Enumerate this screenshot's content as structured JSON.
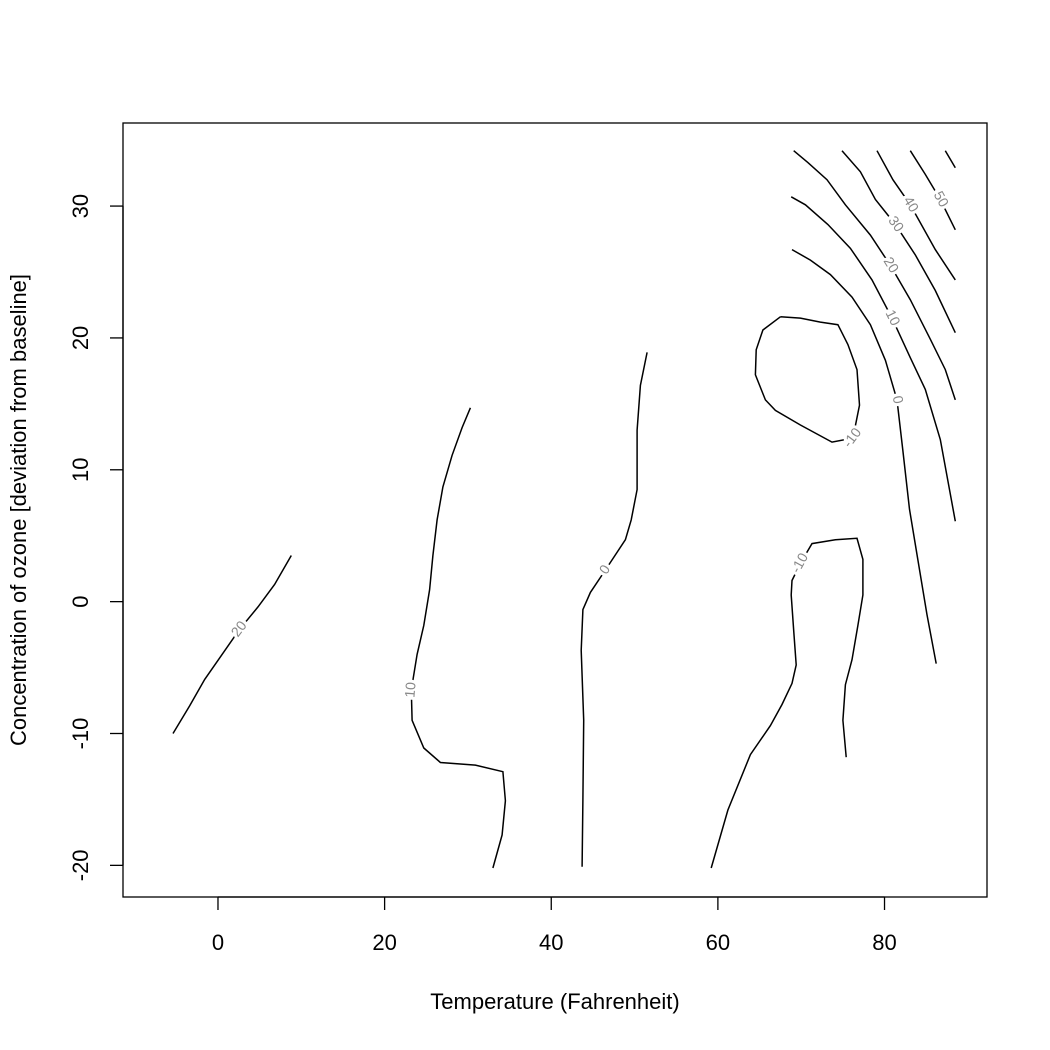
{
  "chart_data": {
    "type": "contour",
    "xlabel": "Temperature (Fahrenheit)",
    "ylabel": "Concentration of ozone [deviation from baseline]",
    "xlim": [
      -11.4,
      92.3
    ],
    "ylim": [
      -22.4,
      36.3
    ],
    "xticks": [
      0,
      20,
      40,
      60,
      80
    ],
    "yticks": [
      -20,
      -10,
      0,
      10,
      20,
      30
    ],
    "color": "#000000",
    "contours": [
      {
        "level": 20,
        "x": [
          -5.4,
          -3.4,
          -1.6,
          0.5,
          2.6,
          4.8,
          6.8,
          8.8
        ],
        "y": [
          -10.0,
          -7.9,
          -5.9,
          -4.0,
          -2.1,
          -0.4,
          1.3,
          3.5
        ]
      },
      {
        "level": 10,
        "x": [
          30.3,
          29.3,
          28.1,
          27.0,
          26.3,
          25.8,
          25.4,
          24.7,
          23.9,
          23.2,
          23.3,
          24.7,
          26.7,
          30.9,
          34.2,
          34.5,
          34.1,
          33.0
        ],
        "y": [
          14.7,
          13.2,
          11.1,
          8.7,
          6.2,
          3.5,
          0.9,
          -1.8,
          -4.0,
          -6.7,
          -9.0,
          -11.1,
          -12.2,
          -12.4,
          -12.9,
          -15.1,
          -17.7,
          -20.2
        ]
      },
      {
        "level": 0,
        "x": [
          51.5,
          50.7,
          50.3,
          50.3,
          49.6,
          48.9,
          46.5,
          44.7,
          43.8,
          43.6,
          43.9,
          43.8,
          43.7
        ],
        "y": [
          18.9,
          16.4,
          13.0,
          8.5,
          6.2,
          4.7,
          2.4,
          0.7,
          -0.6,
          -3.7,
          -9.0,
          -15.0,
          -20.1
        ]
      },
      {
        "level": -10,
        "x": [
          59.2,
          61.2,
          63.9,
          66.3,
          67.7,
          68.9,
          69.4,
          69.1,
          68.8,
          68.9,
          69.9,
          71.3,
          74.1,
          76.7,
          77.4,
          77.4,
          76.8,
          76.1,
          75.3,
          75.0,
          75.4
        ],
        "y": [
          -20.2,
          -15.8,
          -11.6,
          -9.4,
          -7.8,
          -6.2,
          -4.8,
          -2.2,
          0.5,
          1.6,
          2.9,
          4.4,
          4.7,
          4.8,
          3.2,
          0.5,
          -1.8,
          -4.4,
          -6.3,
          -9.0,
          -11.8
        ]
      },
      {
        "level": -10,
        "x": [
          67.5,
          65.4,
          64.6,
          64.5,
          65.7,
          66.9,
          69.9,
          73.7,
          76.2,
          77.0,
          76.7,
          75.6,
          74.4,
          72.3,
          69.9,
          67.5
        ],
        "y": [
          21.6,
          20.6,
          19.1,
          17.2,
          15.3,
          14.5,
          13.4,
          12.1,
          12.4,
          14.9,
          17.6,
          19.5,
          21.0,
          21.2,
          21.5,
          21.6
        ]
      },
      {
        "level": 0,
        "x": [
          68.9,
          71.1,
          73.5,
          76.1,
          78.3,
          80.1,
          81.5,
          82.2,
          83.0,
          84.0,
          85.1,
          86.2
        ],
        "y": [
          26.7,
          25.9,
          24.8,
          23.1,
          21.0,
          18.3,
          15.3,
          11.5,
          7.0,
          3.2,
          -1.0,
          -4.7
        ]
      },
      {
        "level": 10,
        "x": [
          68.8,
          70.5,
          73.2,
          75.9,
          78.5,
          80.9,
          83.1,
          84.9,
          86.7,
          88.5
        ],
        "y": [
          30.7,
          30.1,
          28.6,
          26.8,
          24.4,
          21.5,
          18.5,
          16.1,
          12.3,
          6.1
        ]
      },
      {
        "level": 20,
        "x": [
          69.1,
          70.8,
          73.1,
          75.3,
          78.3,
          80.7,
          83.1,
          85.5,
          87.3,
          88.5
        ],
        "y": [
          34.2,
          33.3,
          32.0,
          30.1,
          27.8,
          25.5,
          22.9,
          19.9,
          17.6,
          15.3
        ]
      },
      {
        "level": 30,
        "x": [
          74.9,
          77.1,
          78.9,
          81.3,
          83.7,
          86.1,
          88.5
        ],
        "y": [
          34.2,
          32.6,
          30.5,
          28.6,
          26.3,
          23.6,
          20.4
        ]
      },
      {
        "level": 40,
        "x": [
          79.1,
          81.0,
          83.1,
          86.1,
          88.5
        ],
        "y": [
          34.2,
          32.0,
          30.1,
          26.7,
          24.4
        ]
      },
      {
        "level": 50,
        "x": [
          83.1,
          84.9,
          86.7,
          88.5
        ],
        "y": [
          34.2,
          32.4,
          30.5,
          28.2
        ]
      },
      {
        "x": [
          87.3,
          88.5
        ],
        "y": [
          34.2,
          32.9
        ]
      }
    ]
  }
}
